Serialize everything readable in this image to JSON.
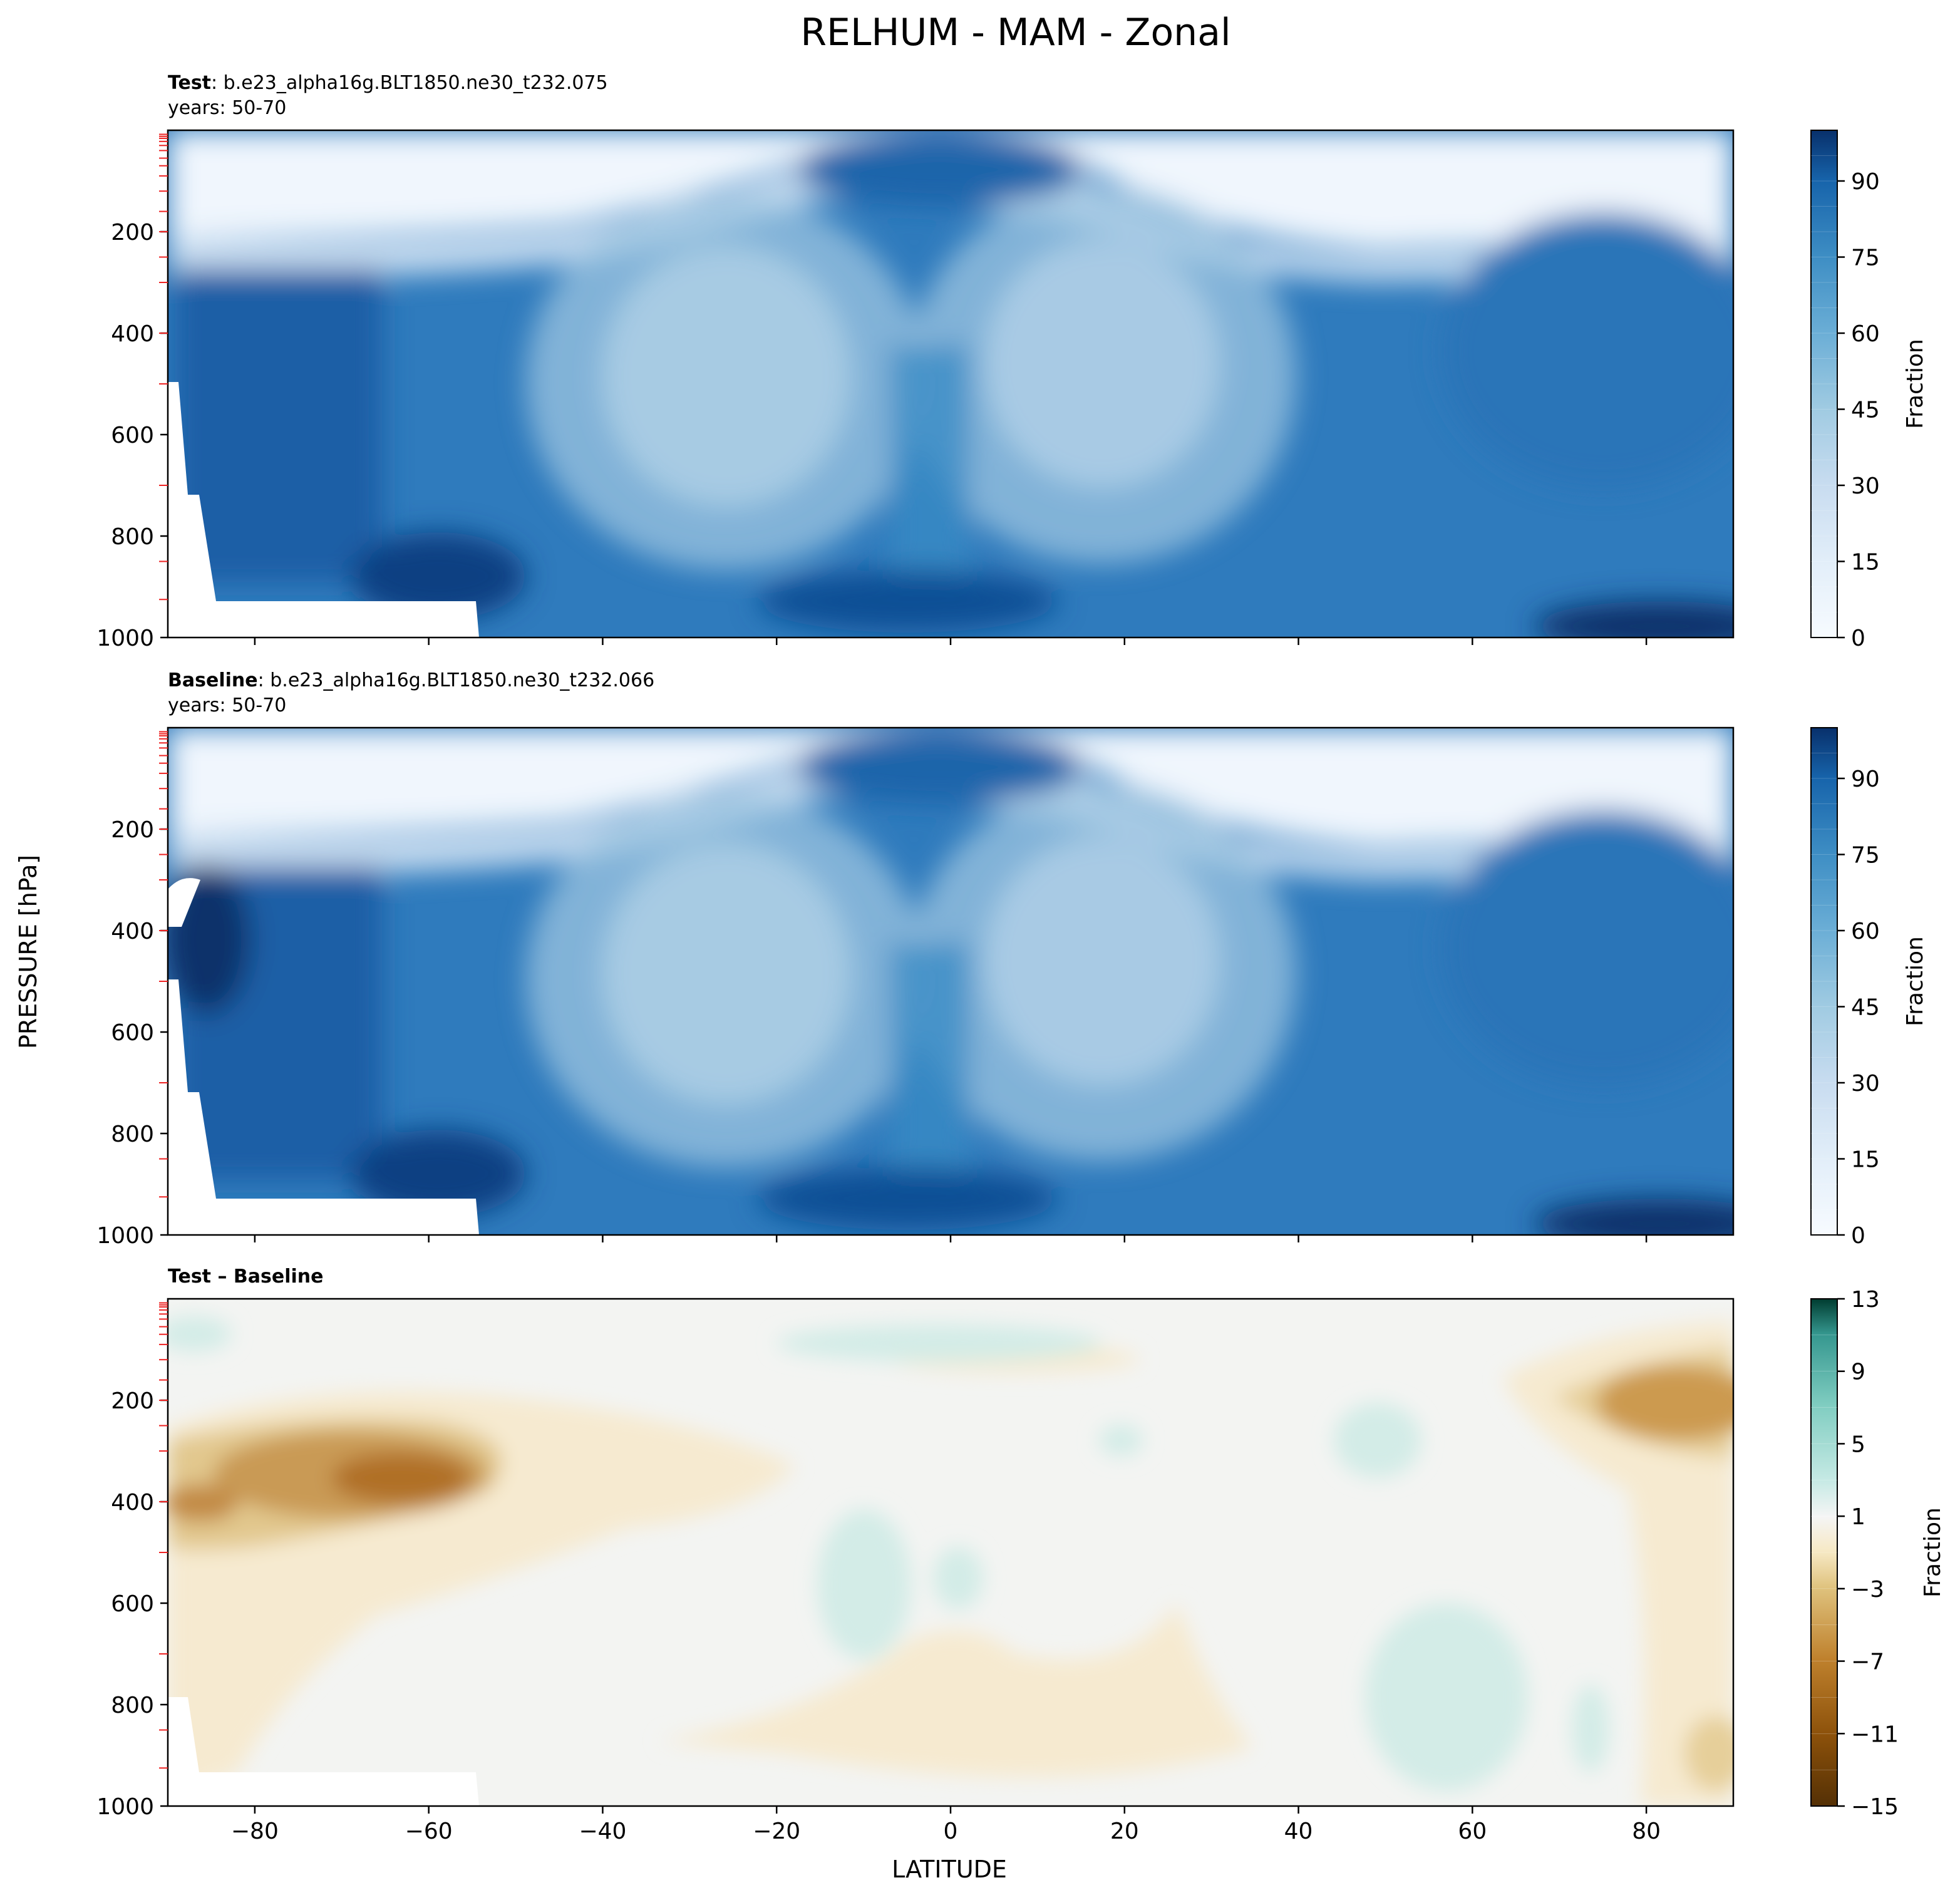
{
  "figure": {
    "title": "RELHUM - MAM - Zonal",
    "ylabel": "PRESSURE [hPa]",
    "xlabel": "LATITUDE"
  },
  "chart_data": [
    {
      "type": "contour",
      "panel": "test",
      "label_bold": "Test",
      "label_rest": ": b.e23_alpha16g.BLT1850.ne30_t232.075",
      "years": "years: 50-70",
      "xlim": [
        -90,
        90
      ],
      "ylim": [
        1000,
        0
      ],
      "xticks": [
        -80,
        -60,
        -40,
        -20,
        0,
        20,
        40,
        60,
        80
      ],
      "yticks": [
        200,
        400,
        600,
        800,
        1000
      ],
      "colorbar": {
        "label": "Fraction",
        "ticks": [
          0,
          15,
          30,
          45,
          60,
          75,
          90
        ],
        "min": 0,
        "max": 100,
        "levels": 20,
        "cmap": "Blues"
      },
      "features": [
        {
          "name": "upper-troposphere dry layer",
          "lat": [
            -90,
            90
          ],
          "pressure": [
            0,
            200
          ],
          "value": 5
        },
        {
          "name": "SH subtropical dry zone",
          "lat": -22,
          "pressure": 500,
          "value": 25
        },
        {
          "name": "NH subtropical dry zone",
          "lat": 18,
          "pressure": 480,
          "value": 20
        },
        {
          "name": "tropical tropopause moist cap",
          "lat": -3,
          "pressure": 100,
          "value": 85
        },
        {
          "name": "Antarctic moist column",
          "lat": -75,
          "pressure": 600,
          "value": 85
        },
        {
          "name": "Arctic surface layer",
          "lat": 85,
          "pressure": 990,
          "value": 95
        }
      ]
    },
    {
      "type": "contour",
      "panel": "baseline",
      "label_bold": "Baseline",
      "label_rest": ": b.e23_alpha16g.BLT1850.ne30_t232.066",
      "years": "years: 50-70",
      "xlim": [
        -90,
        90
      ],
      "ylim": [
        1000,
        0
      ],
      "xticks": [
        -80,
        -60,
        -40,
        -20,
        0,
        20,
        40,
        60,
        80
      ],
      "yticks": [
        200,
        400,
        600,
        800,
        1000
      ],
      "colorbar": {
        "label": "Fraction",
        "ticks": [
          0,
          15,
          30,
          45,
          60,
          75,
          90
        ],
        "min": 0,
        "max": 100,
        "levels": 20,
        "cmap": "Blues"
      },
      "features": [
        {
          "name": "upper-troposphere dry layer",
          "lat": [
            -90,
            90
          ],
          "pressure": [
            0,
            200
          ],
          "value": 5
        },
        {
          "name": "SH subtropical dry zone",
          "lat": -22,
          "pressure": 500,
          "value": 25
        },
        {
          "name": "NH subtropical dry zone",
          "lat": 18,
          "pressure": 480,
          "value": 20
        },
        {
          "name": "Antarctic moist column",
          "lat": -85,
          "pressure": 400,
          "value": 95
        }
      ]
    },
    {
      "type": "contour",
      "panel": "difference",
      "label_bold": "Test – Baseline",
      "xlim": [
        -90,
        90
      ],
      "ylim": [
        1000,
        0
      ],
      "xticks": [
        -80,
        -60,
        -40,
        -20,
        0,
        20,
        40,
        60,
        80
      ],
      "yticks": [
        200,
        400,
        600,
        800,
        1000
      ],
      "colorbar": {
        "label": "Fraction",
        "ticks": [
          13,
          9,
          5,
          1,
          -3,
          -7,
          -11,
          -15
        ],
        "min": -15,
        "max": 13,
        "levels": 14,
        "cmap": "BrBG"
      },
      "features": [
        {
          "name": "SH upper-troposphere drying max",
          "lat": -68,
          "pressure": 300,
          "value": -10
        },
        {
          "name": "NH high-latitude drying",
          "lat": 85,
          "pressure": 230,
          "value": -8
        },
        {
          "name": "NH midlatitude moistening",
          "lat": 52,
          "pressure": 800,
          "value": 2
        }
      ]
    }
  ]
}
